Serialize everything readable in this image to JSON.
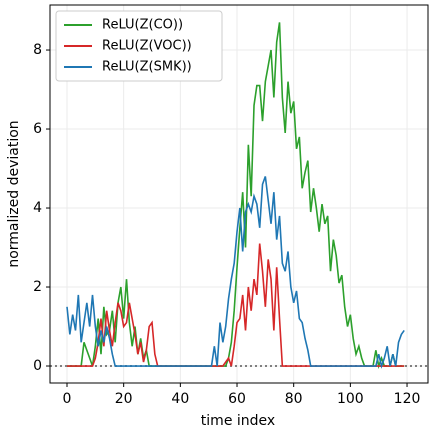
{
  "chart_data": {
    "type": "line",
    "xlabel": "time index",
    "ylabel": "normalized deviation",
    "x": [
      0,
      1,
      2,
      3,
      4,
      5,
      6,
      7,
      8,
      9,
      10,
      11,
      12,
      13,
      14,
      15,
      16,
      17,
      18,
      19,
      20,
      21,
      22,
      23,
      24,
      25,
      26,
      27,
      28,
      29,
      30,
      31,
      32,
      33,
      34,
      35,
      36,
      37,
      38,
      39,
      40,
      41,
      42,
      43,
      44,
      45,
      46,
      47,
      48,
      49,
      50,
      51,
      52,
      53,
      54,
      55,
      56,
      57,
      58,
      59,
      60,
      61,
      62,
      63,
      64,
      65,
      66,
      67,
      68,
      69,
      70,
      71,
      72,
      73,
      74,
      75,
      76,
      77,
      78,
      79,
      80,
      81,
      82,
      83,
      84,
      85,
      86,
      87,
      88,
      89,
      90,
      91,
      92,
      93,
      94,
      95,
      96,
      97,
      98,
      99,
      100,
      101,
      102,
      103,
      104,
      105,
      106,
      107,
      108,
      109,
      110,
      111,
      112,
      113,
      114,
      115,
      116,
      117,
      118,
      119
    ],
    "series": [
      {
        "name": "ReLU(Z(CO))",
        "color": "#2ca02c",
        "values": [
          0,
          0,
          0,
          0,
          0,
          0,
          0.6,
          0.4,
          0.2,
          0,
          0.5,
          1.2,
          0.3,
          1.5,
          0.8,
          0.9,
          1.4,
          0.6,
          1.6,
          2.0,
          1.2,
          2.2,
          1.1,
          0.5,
          1.0,
          0.3,
          0.7,
          0.2,
          0.4,
          0,
          0,
          0,
          0,
          0,
          0,
          0,
          0,
          0,
          0,
          0,
          0,
          0,
          0,
          0,
          0,
          0,
          0,
          0,
          0,
          0,
          0,
          0,
          0,
          0,
          0,
          0,
          0,
          0.2,
          0.6,
          1.4,
          2.5,
          3.5,
          4.4,
          3.0,
          5.6,
          4.3,
          6.6,
          7.1,
          7.1,
          6.2,
          7.2,
          7.6,
          8.0,
          6.8,
          8.2,
          8.7,
          6.8,
          5.9,
          7.2,
          6.4,
          6.7,
          5.5,
          5.8,
          4.5,
          4.9,
          5.2,
          3.9,
          4.5,
          4.0,
          3.4,
          4.1,
          3.6,
          3.8,
          2.4,
          3.2,
          2.8,
          2.1,
          2.3,
          1.5,
          1.0,
          1.3,
          0.7,
          0.3,
          0.5,
          0.2,
          0,
          0,
          0,
          0,
          0.4,
          0,
          0.2,
          0,
          0,
          0,
          0.3,
          0,
          0,
          0,
          0
        ]
      },
      {
        "name": "ReLU(Z(VOC))",
        "color": "#d62728",
        "values": [
          0,
          0,
          0,
          0,
          0,
          0,
          0,
          0,
          0,
          0,
          0.2,
          0.6,
          1.2,
          0.5,
          1.4,
          0.9,
          0.5,
          1.1,
          1.6,
          1.4,
          1.0,
          1.1,
          1.6,
          1.2,
          0.8,
          0.3,
          0.6,
          0.1,
          0.4,
          1.0,
          1.1,
          0.3,
          0,
          0,
          0,
          0,
          0,
          0,
          0,
          0,
          0,
          0,
          0,
          0,
          0,
          0,
          0,
          0,
          0,
          0,
          0,
          0,
          0,
          0,
          0,
          0,
          0.1,
          0.2,
          0,
          0.5,
          1.1,
          1.2,
          1.8,
          0.9,
          2.0,
          1.4,
          2.2,
          1.8,
          3.1,
          2.4,
          1.5,
          2.7,
          2.2,
          0.9,
          2.5,
          1.2,
          0,
          0,
          0,
          0,
          0,
          0,
          0,
          0,
          0,
          0,
          0,
          0,
          0,
          0,
          0,
          0,
          0,
          0,
          0,
          0,
          0,
          0,
          0,
          0,
          0,
          0,
          0,
          0,
          0,
          0,
          0,
          0,
          0,
          0,
          0,
          0,
          0,
          0,
          0,
          0,
          0,
          0,
          0,
          0
        ]
      },
      {
        "name": "ReLU(Z(SMK))",
        "color": "#1f77b4",
        "values": [
          1.5,
          0.8,
          1.3,
          0.9,
          1.8,
          0.6,
          1.1,
          1.6,
          1.0,
          1.8,
          1.0,
          0.5,
          0.9,
          0.6,
          1.0,
          0.7,
          0.3,
          0,
          0,
          0,
          0,
          0,
          0,
          0,
          0,
          0,
          0,
          0,
          0,
          0,
          0,
          0,
          0,
          0,
          0,
          0,
          0,
          0,
          0,
          0,
          0,
          0,
          0,
          0,
          0,
          0,
          0,
          0,
          0,
          0,
          0,
          0,
          0.5,
          0,
          1.1,
          0.6,
          1.0,
          1.7,
          2.2,
          2.6,
          3.4,
          4.0,
          2.9,
          3.9,
          4.1,
          3.9,
          4.3,
          4.1,
          3.5,
          4.6,
          4.8,
          4.2,
          3.6,
          4.4,
          3.2,
          3.8,
          2.6,
          2.4,
          2.9,
          2.0,
          1.6,
          1.9,
          1.2,
          1.1,
          0.7,
          0.4,
          0,
          0,
          0,
          0,
          0,
          0,
          0,
          0,
          0,
          0,
          0,
          0,
          0,
          0,
          0,
          0,
          0,
          0,
          0,
          0,
          0,
          0,
          0,
          0,
          0.3,
          0,
          0.2,
          0.5,
          0,
          0.3,
          0,
          0.6,
          0.8,
          0.9
        ]
      }
    ],
    "reference_line": 0,
    "reference_color": "#808080",
    "xlim": [
      -6,
      127.4
    ],
    "ylim": [
      -0.43,
      9.14
    ],
    "xticks": [
      0,
      20,
      40,
      60,
      80,
      100,
      120
    ],
    "yticks": [
      0,
      2,
      4,
      6,
      8
    ],
    "grid": true,
    "legend": "upper left"
  }
}
